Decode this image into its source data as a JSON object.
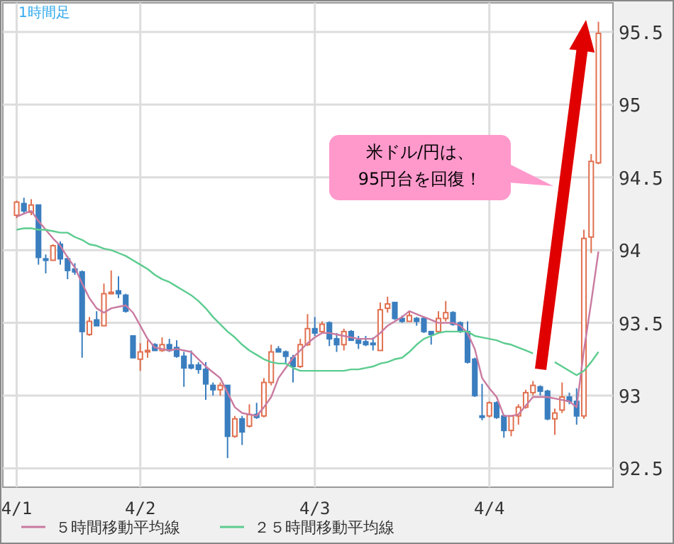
{
  "chart_data": {
    "type": "candlestick",
    "title": "1時間足",
    "categories": [
      "4/1",
      null,
      null,
      null,
      null,
      null,
      null,
      null,
      null,
      null,
      null,
      null,
      null,
      null,
      null,
      null,
      null,
      "4/2",
      null,
      null,
      null,
      null,
      null,
      null,
      null,
      null,
      null,
      null,
      null,
      null,
      null,
      null,
      null,
      null,
      null,
      null,
      null,
      null,
      null,
      null,
      null,
      "4/3",
      null,
      null,
      null,
      null,
      null,
      null,
      null,
      null,
      null,
      null,
      null,
      null,
      null,
      null,
      null,
      null,
      null,
      null,
      null,
      null,
      null,
      null,
      null,
      "4/4",
      null,
      null,
      null,
      null,
      null,
      null,
      null,
      null,
      null,
      null,
      null,
      null,
      null,
      null,
      null
    ],
    "ohlc": [
      [
        94.24,
        94.34,
        94.22,
        94.33
      ],
      [
        94.32,
        94.36,
        94.25,
        94.27
      ],
      [
        94.26,
        94.35,
        94.24,
        94.31
      ],
      [
        94.31,
        94.31,
        93.9,
        93.95
      ],
      [
        93.94,
        93.97,
        93.84,
        93.93
      ],
      [
        93.93,
        94.04,
        93.93,
        94.03
      ],
      [
        94.04,
        94.06,
        93.9,
        93.94
      ],
      [
        93.94,
        93.96,
        93.8,
        93.86
      ],
      [
        93.87,
        93.91,
        93.83,
        93.85
      ],
      [
        93.85,
        93.86,
        93.26,
        93.44
      ],
      [
        93.42,
        93.54,
        93.41,
        93.51
      ],
      [
        93.52,
        93.58,
        93.48,
        93.48
      ],
      [
        93.48,
        93.77,
        93.48,
        93.7
      ],
      [
        93.7,
        93.86,
        93.7,
        93.71
      ],
      [
        93.72,
        93.82,
        93.67,
        93.7
      ],
      [
        93.69,
        93.7,
        93.57,
        93.58
      ],
      [
        93.41,
        93.41,
        93.26,
        93.26
      ],
      [
        93.25,
        93.36,
        93.17,
        93.3
      ],
      [
        93.3,
        93.38,
        93.26,
        93.31
      ],
      [
        93.35,
        93.36,
        93.31,
        93.31
      ],
      [
        93.31,
        93.4,
        93.3,
        93.35
      ],
      [
        93.35,
        93.39,
        93.3,
        93.31
      ],
      [
        93.33,
        93.38,
        93.26,
        93.27
      ],
      [
        93.27,
        93.3,
        93.06,
        93.19
      ],
      [
        93.21,
        93.31,
        93.18,
        93.19
      ],
      [
        93.21,
        93.23,
        93.15,
        93.18
      ],
      [
        93.18,
        93.23,
        92.97,
        93.08
      ],
      [
        93.07,
        93.09,
        93,
        93.04
      ],
      [
        93.04,
        93.09,
        93,
        93.07
      ],
      [
        93.07,
        93.07,
        92.57,
        92.72
      ],
      [
        92.72,
        92.86,
        92.71,
        92.84
      ],
      [
        92.84,
        92.86,
        92.66,
        92.75
      ],
      [
        92.79,
        92.94,
        92.78,
        92.87
      ],
      [
        92.87,
        92.95,
        92.84,
        92.85
      ],
      [
        92.86,
        93.12,
        92.85,
        93.09
      ],
      [
        93.09,
        93.35,
        93.07,
        93.3
      ],
      [
        93.32,
        93.34,
        93.3,
        93.3
      ],
      [
        93.3,
        93.31,
        93.22,
        93.27
      ],
      [
        93.26,
        93.28,
        93.09,
        93.2
      ],
      [
        93.2,
        93.39,
        93.19,
        93.35
      ],
      [
        93.35,
        93.56,
        93.34,
        93.46
      ],
      [
        93.46,
        93.54,
        93.41,
        93.43
      ],
      [
        93.44,
        93.51,
        93.43,
        93.49
      ],
      [
        93.5,
        93.51,
        93.34,
        93.39
      ],
      [
        93.39,
        93.43,
        93.3,
        93.35
      ],
      [
        93.35,
        93.46,
        93.31,
        93.44
      ],
      [
        93.44,
        93.45,
        93.38,
        93.38
      ],
      [
        93.38,
        93.41,
        93.32,
        93.36
      ],
      [
        93.37,
        93.41,
        93.34,
        93.35
      ],
      [
        93.36,
        93.4,
        93.31,
        93.35
      ],
      [
        93.31,
        93.64,
        93.31,
        93.59
      ],
      [
        93.6,
        93.68,
        93.57,
        93.63
      ],
      [
        93.64,
        93.64,
        93.52,
        93.53
      ],
      [
        93.53,
        93.55,
        93.5,
        93.51
      ],
      [
        93.51,
        93.58,
        93.51,
        93.55
      ],
      [
        93.53,
        93.54,
        93.48,
        93.51
      ],
      [
        93.53,
        93.54,
        93.43,
        93.44
      ],
      [
        93.44,
        93.44,
        93.35,
        93.42
      ],
      [
        93.44,
        93.58,
        93.43,
        93.53
      ],
      [
        93.53,
        93.65,
        93.51,
        93.57
      ],
      [
        93.57,
        93.58,
        93.48,
        93.49
      ],
      [
        93.5,
        93.51,
        93.43,
        93.44
      ],
      [
        93.44,
        93.51,
        93.22,
        93.23
      ],
      [
        93.25,
        93.26,
        92.99,
        93
      ],
      [
        92.86,
        93.08,
        92.83,
        92.85
      ],
      [
        92.86,
        92.96,
        92.85,
        92.95
      ],
      [
        92.95,
        92.96,
        92.84,
        92.85
      ],
      [
        92.86,
        92.87,
        92.71,
        92.76
      ],
      [
        92.76,
        92.86,
        92.72,
        92.86
      ],
      [
        92.86,
        92.94,
        92.8,
        92.92
      ],
      [
        92.92,
        93.04,
        92.91,
        93.02
      ],
      [
        93.02,
        93.1,
        93,
        93.07
      ],
      [
        93.06,
        93.07,
        93,
        93.03
      ],
      [
        93.03,
        93.04,
        92.83,
        92.84
      ],
      [
        92.84,
        92.91,
        92.73,
        92.88
      ],
      [
        92.9,
        93.09,
        92.88,
        92.99
      ],
      [
        92.99,
        93.02,
        92.94,
        92.96
      ],
      [
        92.96,
        93.05,
        92.8,
        92.86
      ],
      [
        92.86,
        94.14,
        92.84,
        94.08
      ],
      [
        94.09,
        94.66,
        93.98,
        94.61
      ],
      [
        94.6,
        95.57,
        94.59,
        95.49
      ]
    ],
    "colors": [
      "#e0704f",
      "#3a7ebf",
      "#e0704f",
      "#3a7ebf",
      "#3a7ebf",
      "#e0704f",
      "#3a7ebf",
      "#3a7ebf",
      "#3a7ebf",
      "#3a7ebf",
      "#e0704f",
      "#3a7ebf",
      "#e0704f",
      "#e0704f",
      "#3a7ebf",
      "#3a7ebf",
      "#3a7ebf",
      "#e0704f",
      "#e0704f",
      "#3a7ebf",
      "#e0704f",
      "#3a7ebf",
      "#3a7ebf",
      "#3a7ebf",
      "#3a7ebf",
      "#3a7ebf",
      "#3a7ebf",
      "#3a7ebf",
      "#e0704f",
      "#3a7ebf",
      "#e0704f",
      "#3a7ebf",
      "#e0704f",
      "#3a7ebf",
      "#e0704f",
      "#e0704f",
      "#3a7ebf",
      "#3a7ebf",
      "#3a7ebf",
      "#e0704f",
      "#e0704f",
      "#3a7ebf",
      "#e0704f",
      "#3a7ebf",
      "#3a7ebf",
      "#e0704f",
      "#3a7ebf",
      "#3a7ebf",
      "#3a7ebf",
      "#3a7ebf",
      "#e0704f",
      "#e0704f",
      "#3a7ebf",
      "#3a7ebf",
      "#e0704f",
      "#3a7ebf",
      "#3a7ebf",
      "#3a7ebf",
      "#e0704f",
      "#e0704f",
      "#3a7ebf",
      "#3a7ebf",
      "#3a7ebf",
      "#3a7ebf",
      "#3a7ebf",
      "#e0704f",
      "#3a7ebf",
      "#3a7ebf",
      "#e0704f",
      "#e0704f",
      "#e0704f",
      "#e0704f",
      "#3a7ebf",
      "#3a7ebf",
      "#e0704f",
      "#e0704f",
      "#3a7ebf",
      "#3a7ebf",
      "#e0704f",
      "#e0704f",
      "#e0704f"
    ],
    "series": [
      {
        "name": "５時間移動平均線",
        "type": "line",
        "color": "#c97aa0",
        "values": [
          94.23,
          94.25,
          94.27,
          94.2,
          94.14,
          94.08,
          94.03,
          93.95,
          93.88,
          93.77,
          93.67,
          93.6,
          93.57,
          93.6,
          93.61,
          93.62,
          93.57,
          93.48,
          93.39,
          93.33,
          93.32,
          93.31,
          93.32,
          93.31,
          93.3,
          93.25,
          93.2,
          93.16,
          93.12,
          93.02,
          92.92,
          92.88,
          92.87,
          92.86,
          92.92,
          92.99,
          93.12,
          93.19,
          93.26,
          93.31,
          93.36,
          93.4,
          93.43,
          93.43,
          93.42,
          93.41,
          93.4,
          93.39,
          93.39,
          93.39,
          93.43,
          93.48,
          93.51,
          93.54,
          93.58,
          93.56,
          93.54,
          93.52,
          93.5,
          93.5,
          93.5,
          93.48,
          93.43,
          93.32,
          93.12,
          93.05,
          92.99,
          92.86,
          92.86,
          92.87,
          92.93,
          92.99,
          92.99,
          92.99,
          92.98,
          92.97,
          92.96,
          92.92,
          93.31,
          93.64,
          93.99
        ]
      },
      {
        "name": "２５時間移動平均線",
        "type": "line",
        "color": "#5ccc8f",
        "values": [
          94.14,
          94.15,
          94.15,
          94.14,
          94.14,
          94.13,
          94.12,
          94.12,
          94.09,
          94.07,
          94.04,
          94.03,
          94.01,
          94,
          93.98,
          93.96,
          93.93,
          93.9,
          93.87,
          93.83,
          93.8,
          93.78,
          93.75,
          93.72,
          93.69,
          93.65,
          93.6,
          93.54,
          93.49,
          93.44,
          93.4,
          93.35,
          93.31,
          93.28,
          93.25,
          93.23,
          93.22,
          93.22,
          93.19,
          93.17,
          93.17,
          93.17,
          93.17,
          93.17,
          93.17,
          93.17,
          93.18,
          93.18,
          93.19,
          93.2,
          93.22,
          93.23,
          93.25,
          93.26,
          93.3,
          93.35,
          93.39,
          93.41,
          93.43,
          93.44,
          93.44,
          93.44,
          93.44,
          93.41,
          93.4,
          93.39,
          93.38,
          93.36,
          93.35,
          93.33,
          93.31,
          93.29,
          null,
          null,
          93.23,
          93.2,
          93.17,
          93.14,
          93.17,
          93.23,
          93.3
        ]
      }
    ],
    "ylim": [
      92.37,
      95.7
    ],
    "yticks": [
      92.5,
      93,
      93.5,
      94,
      94.5,
      95,
      95.5
    ],
    "grid": true,
    "legend": "bottom",
    "annotations": [
      "米ドル/円は、\n95円台を回復！"
    ]
  }
}
